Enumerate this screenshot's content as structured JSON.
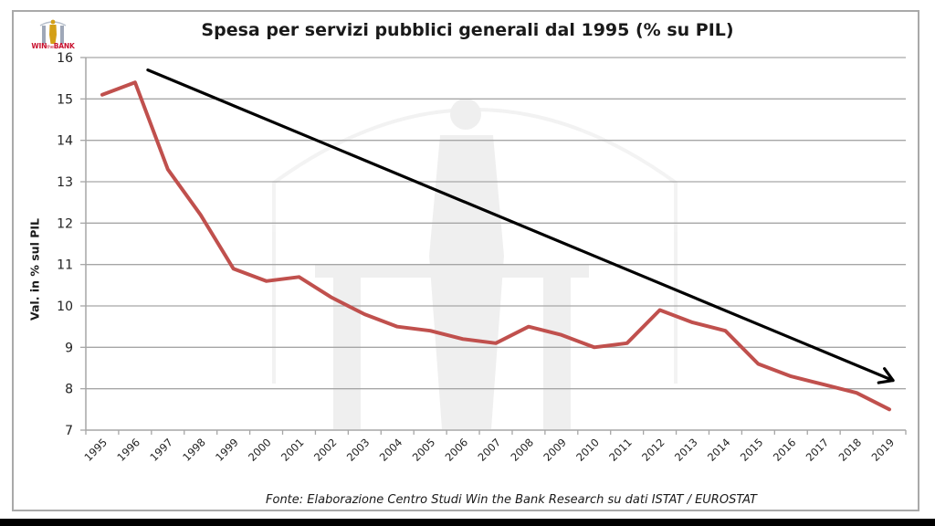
{
  "logo": {
    "text_win": "WIN",
    "text_the": "the",
    "text_bank": "BANK"
  },
  "colors": {
    "series_line": "#C0504D",
    "trend_arrow": "#000000",
    "gridline": "#a6a6a6",
    "logo_gold": "#d4a017",
    "logo_red": "#c8102e"
  },
  "source_note": "Fonte: Elaborazione Centro Studi Win the Bank Research su dati ISTAT / EUROSTAT",
  "chart_data": {
    "type": "line",
    "title": "Spesa per servizi pubblici generali dal 1995 (% su PIL)",
    "xlabel": "",
    "ylabel": "Val. in % sul PIL",
    "ylim": [
      7,
      16
    ],
    "yticks": [
      7,
      8,
      9,
      10,
      11,
      12,
      13,
      14,
      15,
      16
    ],
    "grid": true,
    "legend": "none",
    "categories": [
      "1995",
      "1996",
      "1997",
      "1998",
      "1999",
      "2000",
      "2001",
      "2002",
      "2003",
      "2004",
      "2005",
      "2006",
      "2007",
      "2008",
      "2009",
      "2010",
      "2011",
      "2012",
      "2013",
      "2014",
      "2015",
      "2016",
      "2017",
      "2018",
      "2019"
    ],
    "series": [
      {
        "name": "Spesa per servizi pubblici generali",
        "values": [
          15.1,
          15.4,
          13.3,
          12.2,
          10.9,
          10.6,
          10.7,
          10.2,
          9.8,
          9.5,
          9.4,
          9.2,
          9.1,
          9.5,
          9.3,
          9.0,
          9.1,
          9.9,
          9.6,
          9.4,
          8.6,
          8.3,
          8.1,
          7.9,
          7.5
        ]
      }
    ],
    "annotations": [
      {
        "type": "trend-arrow",
        "direction": "down",
        "from": {
          "x": "1996",
          "y": 15.7
        },
        "to": {
          "x": "2019",
          "y": 8.2
        }
      }
    ]
  }
}
